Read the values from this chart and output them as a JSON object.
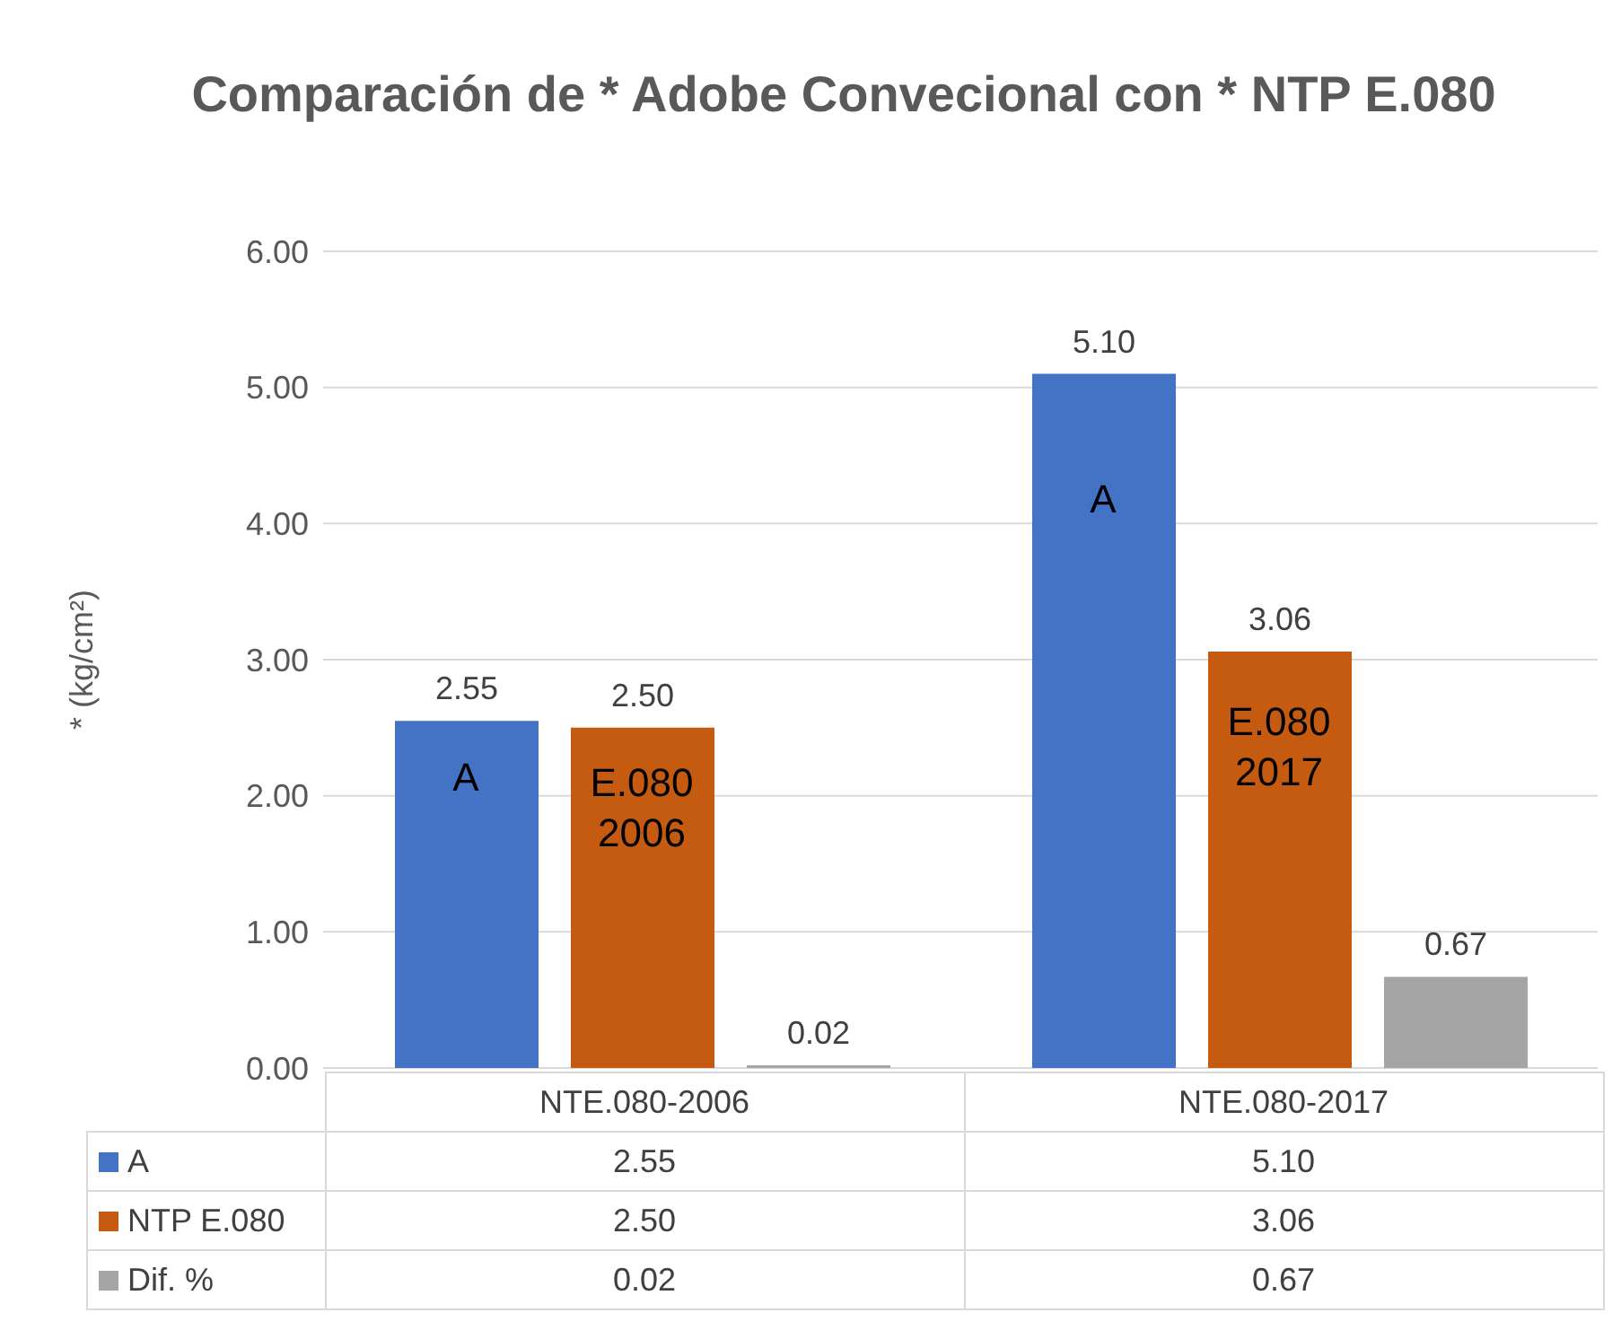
{
  "chart_data": {
    "type": "bar",
    "title": "Comparación de * Adobe Convecional con * NTP E.080",
    "ylabel": "* (kg/cm²)",
    "categories": [
      "NTE.080-2006",
      "NTE.080-2017"
    ],
    "series": [
      {
        "name": "A",
        "color": "#4472c4",
        "values": [
          2.55,
          5.1
        ],
        "value_labels": [
          "2.55",
          "5.10"
        ]
      },
      {
        "name": "NTP E.080",
        "color": "#c55a11",
        "values": [
          2.5,
          3.06
        ],
        "value_labels": [
          "2.50",
          "3.06"
        ]
      },
      {
        "name": "Dif. %",
        "color": "#a5a5a5",
        "values": [
          0.02,
          0.67
        ],
        "value_labels": [
          "0.02",
          "0.67"
        ]
      }
    ],
    "ylim": [
      0,
      6
    ],
    "yticks": [
      {
        "value": 0,
        "label": "0.00"
      },
      {
        "value": 1,
        "label": "1.00"
      },
      {
        "value": 2,
        "label": "2.00"
      },
      {
        "value": 3,
        "label": "3.00"
      },
      {
        "value": 4,
        "label": "4.00"
      },
      {
        "value": 5,
        "label": "5.00"
      },
      {
        "value": 6,
        "label": "6.00"
      }
    ],
    "grid": "y",
    "legend": "bottom",
    "annotations": [
      "A",
      "E.080\n2006",
      "A",
      "E.080\n2017"
    ]
  }
}
